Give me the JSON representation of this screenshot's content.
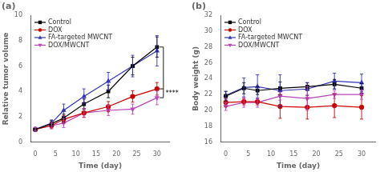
{
  "chart_data": [
    {
      "type": "line",
      "title": "(a)",
      "x_label": "Time (day)",
      "y_label": "Relative tumor volume",
      "x": [
        0,
        4,
        7,
        12,
        18,
        24,
        30
      ],
      "xlim": [
        -1,
        33
      ],
      "ylim": [
        0,
        10
      ],
      "xticks": [
        0,
        5,
        10,
        15,
        20,
        25,
        30
      ],
      "yticks": [
        0,
        2,
        4,
        6,
        8,
        10
      ],
      "grid": false,
      "legend": "upper left",
      "series": [
        {
          "name": "Control",
          "color": "#000000",
          "marker": "square",
          "values": [
            1.0,
            1.45,
            1.9,
            3.0,
            4.0,
            6.0,
            7.5
          ],
          "errors": [
            0.15,
            0.25,
            0.3,
            0.4,
            0.5,
            0.7,
            0.8
          ]
        },
        {
          "name": "DOX",
          "color": "#cc0000",
          "marker": "circle",
          "values": [
            1.0,
            1.3,
            1.8,
            2.3,
            2.8,
            3.6,
            4.2
          ],
          "errors": [
            0.15,
            0.25,
            0.3,
            0.35,
            0.4,
            0.45,
            0.5
          ]
        },
        {
          "name": "FA-targeted MWCNT",
          "color": "#3333bb",
          "marker": "triangle-up",
          "values": [
            1.0,
            1.5,
            2.5,
            3.6,
            4.8,
            6.0,
            7.2
          ],
          "errors": [
            0.15,
            0.25,
            0.5,
            0.6,
            0.7,
            0.85,
            1.2
          ]
        },
        {
          "name": "DOX/MWCNT",
          "color": "#bb44bb",
          "marker": "triangle-down",
          "values": [
            1.0,
            1.3,
            1.5,
            2.3,
            2.5,
            2.6,
            3.5
          ],
          "errors": [
            0.15,
            0.2,
            0.35,
            0.35,
            0.4,
            0.4,
            0.55
          ]
        }
      ],
      "annotations": [
        {
          "text": "****",
          "series": [
            "Control",
            "DOX",
            "DOX/MWCNT"
          ]
        }
      ]
    },
    {
      "type": "line",
      "title": "(b)",
      "x_label": "Time (day)",
      "y_label": "Body weight (g)",
      "x": [
        0,
        4,
        7,
        12,
        18,
        24,
        30
      ],
      "xlim": [
        -1,
        33
      ],
      "ylim": [
        16,
        32
      ],
      "xticks": [
        0,
        5,
        10,
        15,
        20,
        25,
        30
      ],
      "yticks": [
        16,
        18,
        20,
        22,
        24,
        26,
        28,
        30,
        32
      ],
      "grid": false,
      "legend": "upper left",
      "series": [
        {
          "name": "Control",
          "color": "#000000",
          "marker": "square",
          "values": [
            21.8,
            22.8,
            22.5,
            22.8,
            23.0,
            23.3,
            22.8
          ],
          "errors": [
            0.6,
            0.7,
            0.5,
            0.8,
            0.5,
            0.6,
            0.6
          ]
        },
        {
          "name": "DOX",
          "color": "#cc0000",
          "marker": "circle",
          "values": [
            21.0,
            21.1,
            21.1,
            20.5,
            20.4,
            20.6,
            20.4
          ],
          "errors": [
            0.5,
            0.4,
            0.4,
            1.5,
            1.5,
            1.5,
            1.5
          ]
        },
        {
          "name": "FA-targeted MWCNT",
          "color": "#3333bb",
          "marker": "triangle-up",
          "values": [
            21.9,
            22.9,
            23.0,
            22.5,
            22.7,
            23.7,
            23.5
          ],
          "errors": [
            0.5,
            1.2,
            1.5,
            2.0,
            0.8,
            1.0,
            1.1
          ]
        },
        {
          "name": "DOX/MWCNT",
          "color": "#bb44bb",
          "marker": "triangle-down",
          "values": [
            20.5,
            21.0,
            21.0,
            21.8,
            21.5,
            22.0,
            22.0
          ],
          "errors": [
            0.5,
            0.6,
            0.6,
            0.5,
            1.5,
            0.5,
            0.6
          ]
        }
      ]
    }
  ]
}
